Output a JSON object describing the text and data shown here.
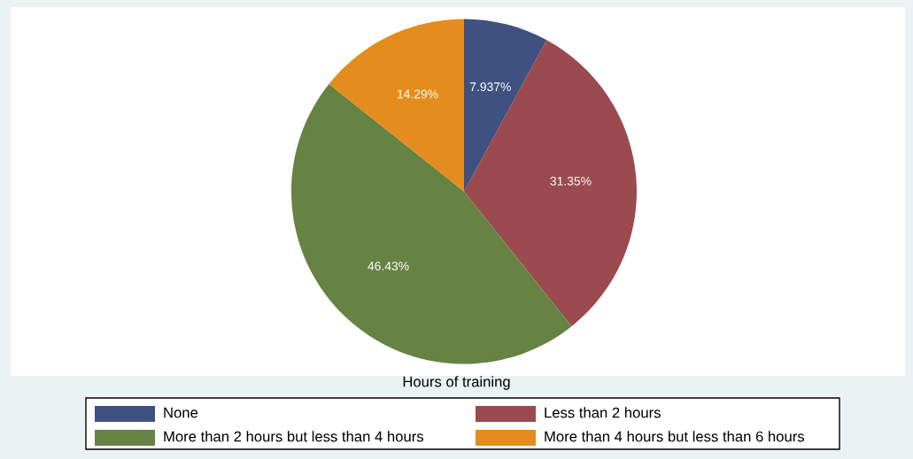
{
  "chart_data": {
    "type": "pie",
    "categories": [
      "None",
      "Less than 2 hours",
      "More than 2 hours but less than 4 hours",
      "More than 4 hours but less than 6 hours"
    ],
    "values": [
      7.937,
      31.35,
      46.43,
      14.29
    ],
    "value_labels": [
      "7.937%",
      "31.35%",
      "46.43%",
      "14.29%"
    ],
    "colors": [
      "#3e5180",
      "#9b4a4f",
      "#678343",
      "#e58c1e"
    ],
    "legend_title": "Hours of training",
    "legend": "bottom"
  }
}
